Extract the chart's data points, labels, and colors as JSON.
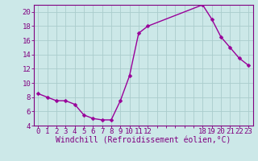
{
  "x": [
    0,
    1,
    2,
    3,
    4,
    5,
    6,
    7,
    8,
    9,
    10,
    11,
    12,
    18,
    19,
    20,
    21,
    22,
    23
  ],
  "y": [
    8.5,
    8.0,
    7.5,
    7.5,
    7.0,
    5.5,
    5.0,
    4.8,
    4.8,
    7.5,
    11.0,
    17.0,
    18.0,
    21.0,
    19.0,
    16.5,
    15.0,
    13.5,
    12.5
  ],
  "line_color": "#990099",
  "marker_color": "#990099",
  "bg_color": "#cce8e8",
  "grid_color": "#aacccc",
  "xlabel": "Windchill (Refroidissement éolien,°C)",
  "xlim": [
    -0.5,
    23.5
  ],
  "ylim": [
    4,
    21
  ],
  "yticks": [
    4,
    6,
    8,
    10,
    12,
    14,
    16,
    18,
    20
  ],
  "xticks_shown": [
    0,
    1,
    2,
    3,
    4,
    5,
    6,
    7,
    8,
    9,
    10,
    11,
    12,
    18,
    19,
    20,
    21,
    22,
    23
  ],
  "xticks_all": [
    0,
    1,
    2,
    3,
    4,
    5,
    6,
    7,
    8,
    9,
    10,
    11,
    12,
    13,
    14,
    15,
    16,
    17,
    18,
    19,
    20,
    21,
    22,
    23
  ],
  "tick_label_color": "#800080",
  "xlabel_color": "#800080",
  "xlabel_fontsize": 7,
  "tick_fontsize": 6.5,
  "marker_size": 2.5,
  "linewidth": 1.0
}
